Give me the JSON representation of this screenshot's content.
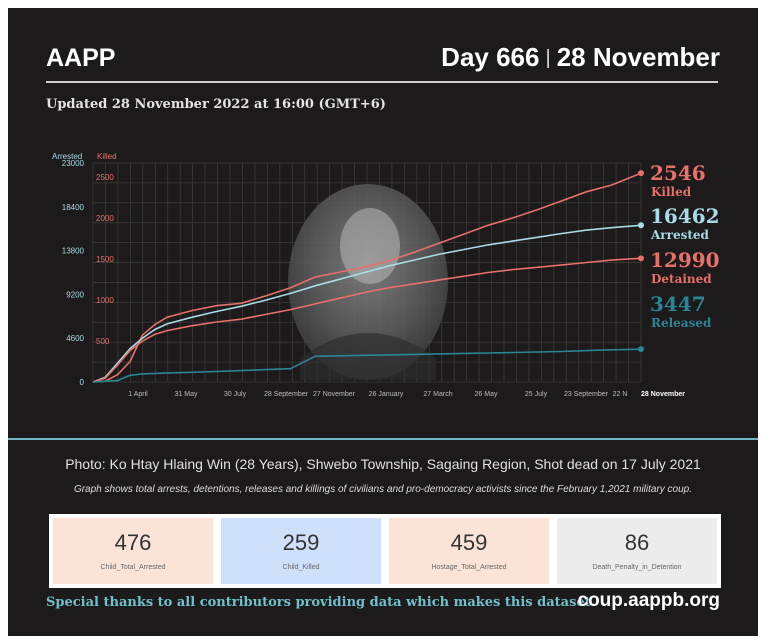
{
  "header": {
    "org": "AAPP",
    "day": "Day 666",
    "separator": "|",
    "date": "28 November",
    "updated": "Updated 28 November 2022 at 16:00 (GMT+6)"
  },
  "chart_data": {
    "type": "line",
    "axis_left_label": "Arrested",
    "axis_right_label": "Killed",
    "arrested_ticks": [
      "23000",
      "18400",
      "13800",
      "9200",
      "4600",
      "0"
    ],
    "killed_ticks": [
      "2500",
      "2000",
      "1500",
      "1000",
      "500"
    ],
    "x_tick_labels": [
      "1 April",
      "31 May",
      "30 July",
      "28 September",
      "27 November",
      "26 January",
      "27 March",
      "26 May",
      "25 July",
      "23 September",
      "22 N",
      "28 November"
    ],
    "ylim_arrested": [
      0,
      23000
    ],
    "ylim_killed": [
      0,
      2670
    ],
    "x": [
      0,
      15,
      30,
      45,
      60,
      75,
      90,
      120,
      150,
      180,
      210,
      240,
      270,
      300,
      330,
      360,
      390,
      420,
      450,
      480,
      510,
      540,
      570,
      600,
      630,
      666
    ],
    "series": [
      {
        "name": "Killed",
        "color": "#e8706a",
        "axis": "killed",
        "values": [
          0,
          10,
          90,
          250,
          570,
          700,
          790,
          870,
          930,
          960,
          1050,
          1150,
          1280,
          1340,
          1400,
          1480,
          1580,
          1690,
          1800,
          1910,
          2000,
          2100,
          2210,
          2320,
          2400,
          2546
        ]
      },
      {
        "name": "Arrested",
        "color": "#a8dbe6",
        "axis": "arrested",
        "values": [
          0,
          500,
          2000,
          3500,
          4600,
          5500,
          6100,
          6800,
          7400,
          7950,
          8600,
          9300,
          10100,
          10800,
          11500,
          12200,
          12800,
          13400,
          13900,
          14400,
          14800,
          15200,
          15600,
          15950,
          16200,
          16462
        ]
      },
      {
        "name": "Detained",
        "color": "#e8706a",
        "axis": "arrested",
        "values": [
          0,
          400,
          1800,
          3300,
          4300,
          5000,
          5400,
          5900,
          6300,
          6600,
          7100,
          7600,
          8200,
          8800,
          9400,
          9900,
          10300,
          10700,
          11100,
          11500,
          11800,
          12050,
          12300,
          12550,
          12800,
          12990
        ]
      },
      {
        "name": "Released",
        "color": "#2a8596",
        "axis": "arrested",
        "values": [
          0,
          80,
          150,
          700,
          850,
          900,
          960,
          1020,
          1100,
          1200,
          1300,
          1400,
          2700,
          2750,
          2800,
          2850,
          2900,
          2950,
          3000,
          3050,
          3100,
          3150,
          3200,
          3300,
          3380,
          3447
        ]
      }
    ],
    "end_labels": [
      {
        "value": "2546",
        "label": "Killed",
        "color": "#e8706a"
      },
      {
        "value": "16462",
        "label": "Arrested",
        "color": "#a8dbe6"
      },
      {
        "value": "12990",
        "label": "Detained",
        "color": "#e8706a"
      },
      {
        "value": "3447",
        "label": "Released",
        "color": "#2a8596"
      }
    ],
    "grid": true
  },
  "caption": {
    "photo": "Photo: Ko Htay Hlaing Win (28 Years), Shwebo Township, Sagaing Region, Shot dead on 17 July  2021",
    "note": "Graph shows total arrests, detentions, releases and killings of civilians and pro-democracy activists since the February 1,2021 military coup."
  },
  "stats": [
    {
      "value": "476",
      "label": "Child_Total_Arrested",
      "bg": "#fbe3d7"
    },
    {
      "value": "259",
      "label": "Child_Killed",
      "bg": "#cfe0fb"
    },
    {
      "value": "459",
      "label": "Hostage_Total_Arrested",
      "bg": "#fbe3d7"
    },
    {
      "value": "86",
      "label": "Death_Penalty_in_Detention",
      "bg": "#ececec"
    }
  ],
  "footer": {
    "thanks": "Special thanks to all contributors providing data which makes this dataset.",
    "site": "coup.aappb.org"
  }
}
